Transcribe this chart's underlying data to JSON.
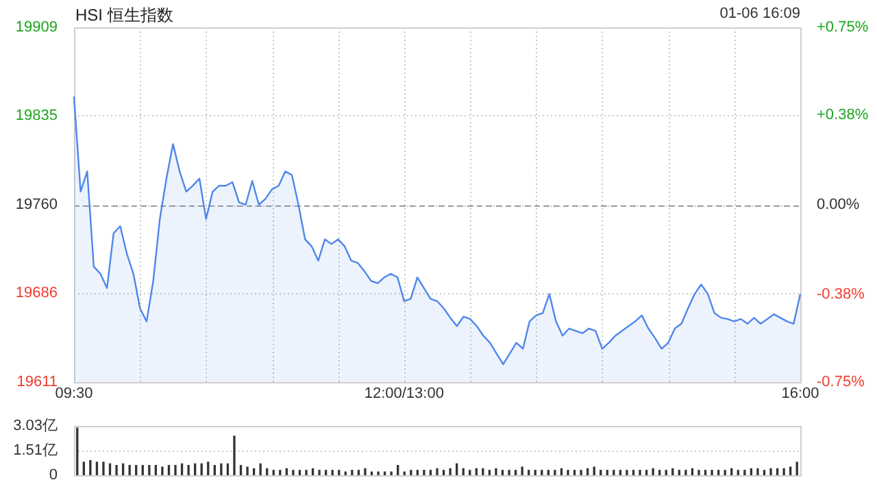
{
  "chart_data": [
    {
      "type": "area",
      "title": "HSI 恒生指数",
      "annotations": [
        "01-06 16:09"
      ],
      "categories": [
        "09:30",
        null,
        null,
        null,
        null,
        null,
        null,
        null,
        null,
        null,
        null,
        null,
        null,
        null,
        null,
        null,
        null,
        null,
        null,
        null,
        null,
        null,
        null,
        null,
        null,
        null,
        null,
        null,
        null,
        null,
        null,
        null,
        null,
        null,
        null,
        null,
        null,
        null,
        null,
        null,
        null,
        null,
        null,
        null,
        null,
        null,
        null,
        null,
        null,
        null,
        "12:00/13:00",
        null,
        null,
        null,
        null,
        null,
        null,
        null,
        null,
        null,
        null,
        null,
        null,
        null,
        null,
        null,
        null,
        null,
        null,
        null,
        null,
        null,
        null,
        null,
        null,
        null,
        null,
        null,
        null,
        null,
        null,
        null,
        null,
        null,
        null,
        null,
        null,
        null,
        null,
        null,
        null,
        null,
        null,
        null,
        null,
        null,
        null,
        null,
        null,
        null,
        null,
        null,
        null,
        null,
        null,
        null,
        null,
        null,
        null,
        null,
        "16:00"
      ],
      "series": [
        {
          "color": "#4f86ec",
          "values": [
            19851,
            19771,
            19788,
            19708,
            19702,
            19690,
            19736,
            19742,
            19719,
            19702,
            19673,
            19662,
            19696,
            19748,
            19782,
            19811,
            19788,
            19771,
            19776,
            19782,
            19748,
            19771,
            19776,
            19776,
            19779,
            19762,
            19760,
            19780,
            19760,
            19765,
            19773,
            19776,
            19788,
            19785,
            19760,
            19731,
            19725,
            19713,
            19731,
            19727,
            19731,
            19725,
            19713,
            19711,
            19704,
            19696,
            19694,
            19699,
            19702,
            19699,
            19679,
            19681,
            19699,
            19690,
            19681,
            19679,
            19673,
            19665,
            19658,
            19666,
            19664,
            19658,
            19650,
            19644,
            19635,
            19626,
            19635,
            19644,
            19639,
            19662,
            19667,
            19669,
            19685,
            19662,
            19650,
            19656,
            19654,
            19652,
            19656,
            19654,
            19639,
            19644,
            19650,
            19654,
            19658,
            19662,
            19667,
            19656,
            19648,
            19639,
            19644,
            19656,
            19660,
            19673,
            19685,
            19693,
            19685,
            19669,
            19665,
            19664,
            19662,
            19664,
            19660,
            19665,
            19660,
            19664,
            19668,
            19665,
            19662,
            19660,
            19685
          ]
        }
      ],
      "ylim": [
        19611,
        19909
      ],
      "yticks": [
        19611,
        19686,
        19760,
        19835,
        19909
      ],
      "y2lim": [
        -0.75,
        0.75
      ],
      "y2ticks": [
        {
          "value": -0.75,
          "label": "-0.75%"
        },
        {
          "value": -0.38,
          "label": "-0.38%"
        },
        {
          "value": 0,
          "label": "0.00%"
        },
        {
          "value": 0.38,
          "label": "+0.38%"
        },
        {
          "value": 0.75,
          "label": "+0.75%"
        }
      ],
      "ref_lines": [
        {
          "axis": "y",
          "value": 19760,
          "line_style": "dashed"
        }
      ],
      "grid": true,
      "legend": false
    },
    {
      "type": "bar",
      "color": "#333333",
      "tick_labels": "y",
      "grid": "y",
      "legend": false,
      "categories": [
        null,
        null,
        null,
        null,
        null,
        null,
        null,
        null,
        null,
        null,
        null,
        null,
        null,
        null,
        null,
        null,
        null,
        null,
        null,
        null,
        null,
        null,
        null,
        null,
        null,
        null,
        null,
        null,
        null,
        null,
        null,
        null,
        null,
        null,
        null,
        null,
        null,
        null,
        null,
        null,
        null,
        null,
        null,
        null,
        null,
        null,
        null,
        null,
        null,
        null,
        null,
        null,
        null,
        null,
        null,
        null,
        null,
        null,
        null,
        null,
        null,
        null,
        null,
        null,
        null,
        null,
        null,
        null,
        null,
        null,
        null,
        null,
        null,
        null,
        null,
        null,
        null,
        null,
        null,
        null,
        null,
        null,
        null,
        null,
        null,
        null,
        null,
        null,
        null,
        null,
        null,
        null,
        null,
        null,
        null,
        null,
        null,
        null,
        null,
        null,
        null,
        null,
        null,
        null,
        null,
        null,
        null,
        null,
        null,
        null,
        null
      ],
      "values": [
        2.9,
        0.8,
        0.9,
        0.8,
        0.8,
        0.7,
        0.6,
        0.7,
        0.6,
        0.6,
        0.6,
        0.6,
        0.6,
        0.5,
        0.6,
        0.6,
        0.7,
        0.6,
        0.7,
        0.7,
        0.8,
        0.6,
        0.7,
        0.7,
        2.4,
        0.6,
        0.5,
        0.4,
        0.7,
        0.4,
        0.3,
        0.3,
        0.4,
        0.3,
        0.3,
        0.3,
        0.4,
        0.3,
        0.3,
        0.3,
        0.3,
        0.2,
        0.3,
        0.3,
        0.4,
        0.2,
        0.2,
        0.2,
        0.2,
        0.6,
        0.2,
        0.3,
        0.3,
        0.3,
        0.3,
        0.4,
        0.3,
        0.4,
        0.7,
        0.4,
        0.3,
        0.4,
        0.4,
        0.3,
        0.4,
        0.3,
        0.3,
        0.3,
        0.5,
        0.3,
        0.3,
        0.3,
        0.3,
        0.3,
        0.4,
        0.3,
        0.3,
        0.3,
        0.4,
        0.5,
        0.3,
        0.3,
        0.3,
        0.3,
        0.3,
        0.3,
        0.3,
        0.3,
        0.4,
        0.3,
        0.3,
        0.4,
        0.3,
        0.3,
        0.4,
        0.3,
        0.3,
        0.3,
        0.3,
        0.3,
        0.4,
        0.3,
        0.3,
        0.4,
        0.4,
        0.3,
        0.4,
        0.4,
        0.4,
        0.5,
        0.8
      ],
      "ylim": [
        0,
        3.03
      ],
      "yticks": [
        0,
        {
          "value": 1.51,
          "label": "1.51亿"
        },
        {
          "value": 3.03,
          "label": "3.03亿"
        }
      ]
    }
  ]
}
